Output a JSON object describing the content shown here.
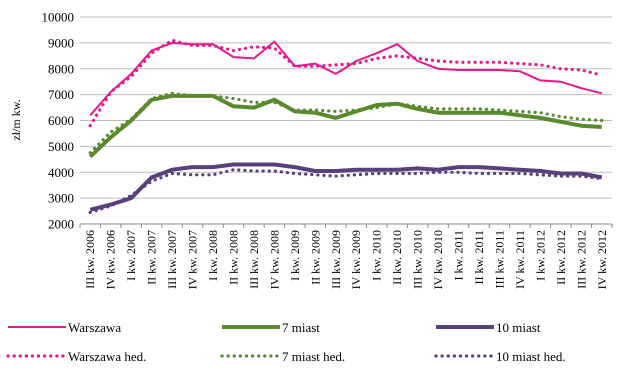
{
  "chart_data": {
    "type": "line",
    "ylabel": "zł/m kw.",
    "xlabel": "",
    "ylim": [
      2000,
      10000
    ],
    "yticks": [
      2000,
      3000,
      4000,
      5000,
      6000,
      7000,
      8000,
      9000,
      10000
    ],
    "grid": "horizontal",
    "legend_position": "bottom",
    "categories": [
      "III kw. 2006",
      "IV kw. 2006",
      "I kw. 2007",
      "II kw. 2007",
      "III kw. 2007",
      "IV kw. 2007",
      "I kw. 2008",
      "II kw. 2008",
      "III kw. 2008",
      "IV kw. 2008",
      "I kw. 2009",
      "II kw. 2009",
      "III kw. 2009",
      "IV kw. 2009",
      "I kw. 2010",
      "II kw. 2010",
      "III kw. 2010",
      "IV kw. 2010",
      "I kw. 2011",
      "II kw. 2011",
      "III kw. 2011",
      "IV kw. 2011",
      "I kw. 2012",
      "II kw. 2012",
      "III kw. 2012",
      "IV kw. 2012"
    ],
    "series": [
      {
        "name": "Warszawa",
        "color": "#e6198c",
        "style": "solid",
        "values": [
          6200,
          7100,
          7800,
          8700,
          9000,
          8950,
          8950,
          8450,
          8400,
          9050,
          8100,
          8200,
          7800,
          8300,
          8600,
          8950,
          8300,
          8000,
          7950,
          7950,
          7950,
          7900,
          7550,
          7500,
          7250,
          7050
        ]
      },
      {
        "name": "7 miast",
        "color": "#5a8a2e",
        "style": "solid",
        "values": [
          4600,
          5350,
          6000,
          6800,
          6950,
          6950,
          6950,
          6550,
          6500,
          6800,
          6350,
          6300,
          6100,
          6350,
          6600,
          6650,
          6450,
          6300,
          6300,
          6300,
          6300,
          6200,
          6100,
          5950,
          5800,
          5750
        ]
      },
      {
        "name": "10 miast",
        "color": "#5b3f7a",
        "style": "solid",
        "values": [
          2550,
          2750,
          3000,
          3800,
          4100,
          4200,
          4200,
          4300,
          4300,
          4300,
          4200,
          4050,
          4050,
          4100,
          4100,
          4100,
          4150,
          4100,
          4200,
          4200,
          4150,
          4100,
          4050,
          3950,
          3950,
          3800
        ]
      },
      {
        "name": "Warszawa hed.",
        "color": "#e6198c",
        "style": "dotted",
        "values": [
          5800,
          7100,
          7700,
          8600,
          9100,
          8900,
          8900,
          8700,
          8850,
          8800,
          8100,
          8100,
          8150,
          8200,
          8400,
          8500,
          8400,
          8300,
          8250,
          8250,
          8250,
          8200,
          8150,
          8000,
          7950,
          7750
        ]
      },
      {
        "name": "7 miast hed.",
        "color": "#5a8a2e",
        "style": "dotted",
        "values": [
          4750,
          5550,
          6050,
          6850,
          7050,
          6950,
          6950,
          6850,
          6700,
          6700,
          6400,
          6400,
          6350,
          6400,
          6500,
          6650,
          6550,
          6450,
          6450,
          6450,
          6400,
          6350,
          6300,
          6150,
          6050,
          6000
        ]
      },
      {
        "name": "10 miast hed.",
        "color": "#5b3f7a",
        "style": "dotted",
        "values": [
          2450,
          2700,
          3100,
          3650,
          3950,
          3900,
          3900,
          4100,
          4050,
          4050,
          3950,
          3900,
          3850,
          3900,
          3950,
          3950,
          3950,
          4000,
          4000,
          3950,
          3950,
          3950,
          3900,
          3850,
          3850,
          3750
        ]
      }
    ]
  }
}
